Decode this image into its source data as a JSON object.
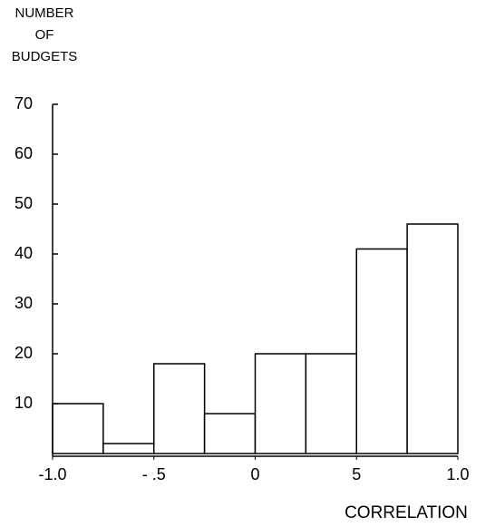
{
  "chart_data": {
    "type": "histogram",
    "ylabel": [
      "NUMBER",
      "OF",
      "BUDGETS"
    ],
    "xlabel": "CORRELATION",
    "bins": [
      -1.0,
      -0.75,
      -0.5,
      -0.25,
      0,
      0.25,
      0.5,
      0.75,
      1.0
    ],
    "counts": [
      10,
      2,
      18,
      8,
      20,
      20,
      41,
      46
    ],
    "color": "#ffffff",
    "xlim": [
      -1.0,
      1.0
    ],
    "xticks": [
      {
        "value": -1.0,
        "label": "-1.0"
      },
      {
        "value": -0.5,
        "label": "- .5"
      },
      0,
      {
        "value": 0.5,
        "label": "5"
      },
      {
        "value": 1.0,
        "label": "1.0"
      }
    ],
    "ylim": [
      0,
      70
    ],
    "yticks": [
      10,
      20,
      30,
      40,
      50,
      60,
      70
    ],
    "grid": false
  }
}
